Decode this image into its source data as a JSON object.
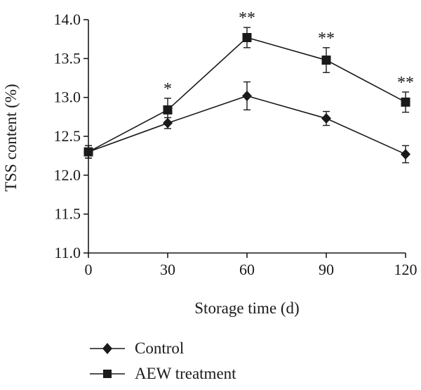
{
  "chart_data": {
    "type": "line",
    "xlabel": "Storage time (d)",
    "ylabel": "TSS content (%)",
    "x": [
      0,
      30,
      60,
      90,
      120
    ],
    "xlim": [
      0,
      120
    ],
    "ylim": [
      11.0,
      14.0
    ],
    "x_ticks": [
      "0",
      "30",
      "60",
      "90",
      "120"
    ],
    "y_ticks": [
      "11.0",
      "11.5",
      "12.0",
      "12.5",
      "13.0",
      "13.5",
      "14.0"
    ],
    "grid": false,
    "legend_position": "bottom",
    "series": [
      {
        "name": "Control",
        "marker": "diamond",
        "values": [
          12.3,
          12.67,
          13.02,
          12.73,
          12.27
        ],
        "errors": [
          0.08,
          0.07,
          0.18,
          0.09,
          0.11
        ]
      },
      {
        "name": "AEW treatment",
        "marker": "square",
        "values": [
          12.3,
          12.84,
          13.77,
          13.48,
          12.94
        ],
        "errors": [
          0.08,
          0.15,
          0.13,
          0.16,
          0.13
        ]
      }
    ],
    "annotations": [
      {
        "x": 30,
        "text": "*"
      },
      {
        "x": 60,
        "text": "**"
      },
      {
        "x": 90,
        "text": "**"
      },
      {
        "x": 120,
        "text": "**"
      }
    ]
  }
}
